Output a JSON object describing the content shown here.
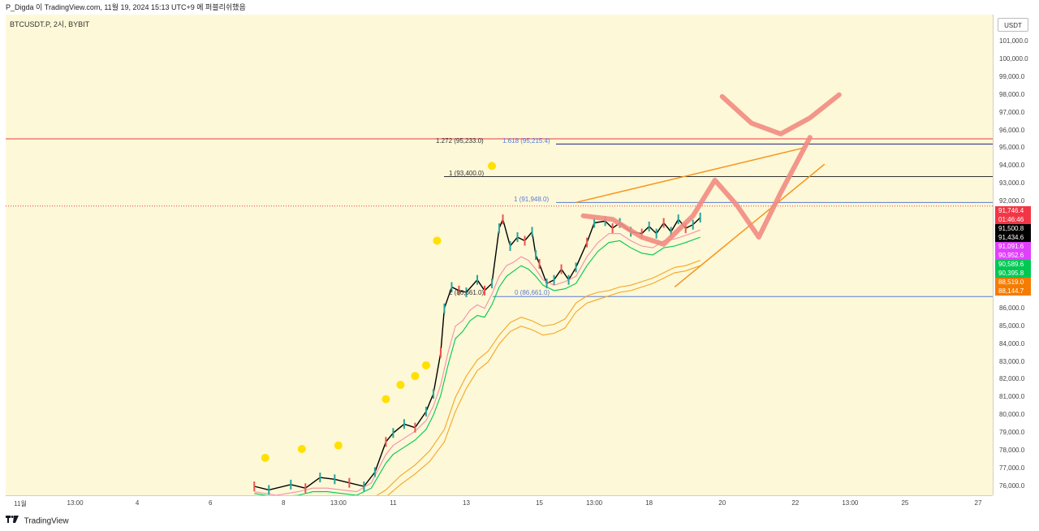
{
  "header": {
    "attribution": "P_Digda 이 TradingView.com, 11월 19, 2024 15:13 UTC+9 에 퍼블리쉬했음"
  },
  "symbol_label": "BTCUSDT.P, 2시, BYBIT",
  "price_scale": {
    "unit": "USDT"
  },
  "footer": {
    "brand": "TradingView"
  },
  "fib_labels": {
    "f1272": "1.272 (95,233.0)",
    "f1618": "1.618 (95,215.4)",
    "f1a": "1 (93,400.0)",
    "f1b": "1 (91,948.0)",
    "f2": "2 (86,661.0)",
    "f0": "0 (86,661.0)"
  },
  "price_badges": [
    {
      "label": "91,746.4",
      "sub": "01:46:46",
      "color": "#f23645"
    },
    {
      "label": "91,500.8",
      "color": "#000000"
    },
    {
      "label": "91,434.6",
      "color": "#000000"
    },
    {
      "label": "91,091.6",
      "color": "#e040fb"
    },
    {
      "label": "90,952.6",
      "color": "#e040fb"
    },
    {
      "label": "90,589.6",
      "color": "#00c853"
    },
    {
      "label": "90,395.8",
      "color": "#00c853"
    },
    {
      "label": "88,519.0",
      "color": "#f57c00"
    },
    {
      "label": "88,144.7",
      "color": "#f57c00"
    }
  ],
  "colors": {
    "background": "#fdf8d7",
    "up": "#26a69a",
    "down": "#ef5350",
    "ma_black": "#000000",
    "ma_pink": "#f48fb1",
    "ma_green": "#00c853",
    "ma_orange": "#f5a623",
    "trend_orange": "#f7931a",
    "path_red": "#f28b82",
    "dot_yellow": "#ffe000"
  },
  "chart_data": {
    "type": "line",
    "title": "BTCUSDT.P, 2시, BYBIT",
    "ylim": [
      75500,
      102500
    ],
    "y_ticks": [
      76000,
      77000,
      78000,
      79000,
      80000,
      81000,
      82000,
      83000,
      84000,
      85000,
      86000,
      87000,
      88000,
      89000,
      90000,
      91000,
      92000,
      93000,
      94000,
      95000,
      96000,
      97000,
      98000,
      99000,
      100000,
      101000
    ],
    "x_ticks": [
      {
        "label": "11월",
        "t": 0
      },
      {
        "label": "13:00",
        "t": 0.75
      },
      {
        "label": "4",
        "t": 1.6
      },
      {
        "label": "6",
        "t": 2.6
      },
      {
        "label": "8",
        "t": 3.6
      },
      {
        "label": "13:00",
        "t": 4.35
      },
      {
        "label": "11",
        "t": 5.1
      },
      {
        "label": "13",
        "t": 6.1
      },
      {
        "label": "15",
        "t": 7.1
      },
      {
        "label": "13:00",
        "t": 7.85
      },
      {
        "label": "18",
        "t": 8.6
      },
      {
        "label": "20",
        "t": 9.6
      },
      {
        "label": "22",
        "t": 10.6
      },
      {
        "label": "13:00",
        "t": 11.35
      },
      {
        "label": "25",
        "t": 12.1
      },
      {
        "label": "27",
        "t": 13.1
      }
    ],
    "series": [
      {
        "points": [
          [
            3.2,
            76000
          ],
          [
            3.4,
            75800
          ],
          [
            3.7,
            76100
          ],
          [
            3.9,
            75900
          ],
          [
            4.1,
            76500
          ],
          [
            4.3,
            76400
          ],
          [
            4.5,
            76200
          ],
          [
            4.7,
            76000
          ],
          [
            4.85,
            76800
          ],
          [
            5.0,
            78500
          ],
          [
            5.1,
            79000
          ],
          [
            5.25,
            79500
          ],
          [
            5.4,
            79300
          ],
          [
            5.55,
            80200
          ],
          [
            5.65,
            81200
          ],
          [
            5.75,
            83500
          ],
          [
            5.8,
            86000
          ],
          [
            5.9,
            87200
          ],
          [
            6.0,
            87000
          ],
          [
            6.1,
            86900
          ],
          [
            6.25,
            87600
          ],
          [
            6.35,
            87000
          ],
          [
            6.45,
            87400
          ],
          [
            6.55,
            90500
          ],
          [
            6.6,
            91000
          ],
          [
            6.7,
            89500
          ],
          [
            6.8,
            90000
          ],
          [
            6.9,
            89800
          ],
          [
            7.0,
            90300
          ],
          [
            7.05,
            89000
          ],
          [
            7.1,
            88500
          ],
          [
            7.2,
            87400
          ],
          [
            7.3,
            87600
          ],
          [
            7.4,
            88200
          ],
          [
            7.5,
            87600
          ],
          [
            7.6,
            88300
          ],
          [
            7.75,
            89700
          ],
          [
            7.85,
            90800
          ],
          [
            8.0,
            90900
          ],
          [
            8.1,
            90500
          ],
          [
            8.2,
            90800
          ],
          [
            8.35,
            90300
          ],
          [
            8.5,
            90200
          ],
          [
            8.6,
            90600
          ],
          [
            8.7,
            90200
          ],
          [
            8.8,
            90800
          ],
          [
            8.9,
            90300
          ],
          [
            9.0,
            91000
          ],
          [
            9.1,
            90500
          ],
          [
            9.2,
            90700
          ],
          [
            9.3,
            91100
          ]
        ]
      },
      {
        "points": [
          [
            3.2,
            75700
          ],
          [
            3.5,
            75500
          ],
          [
            3.8,
            75700
          ],
          [
            4.0,
            75900
          ],
          [
            4.2,
            75900
          ],
          [
            4.4,
            75800
          ],
          [
            4.6,
            75700
          ],
          [
            4.8,
            76200
          ],
          [
            5.0,
            77800
          ],
          [
            5.1,
            78300
          ],
          [
            5.25,
            78700
          ],
          [
            5.4,
            79100
          ],
          [
            5.55,
            79700
          ],
          [
            5.65,
            80500
          ],
          [
            5.75,
            81700
          ],
          [
            5.85,
            83500
          ],
          [
            5.95,
            85000
          ],
          [
            6.05,
            85300
          ],
          [
            6.15,
            85900
          ],
          [
            6.25,
            86200
          ],
          [
            6.35,
            86000
          ],
          [
            6.45,
            86800
          ],
          [
            6.55,
            87800
          ],
          [
            6.65,
            88400
          ],
          [
            6.75,
            88600
          ],
          [
            6.85,
            88900
          ],
          [
            6.95,
            88700
          ],
          [
            7.05,
            88200
          ],
          [
            7.15,
            87600
          ],
          [
            7.3,
            87300
          ],
          [
            7.45,
            87500
          ],
          [
            7.6,
            87800
          ],
          [
            7.75,
            88900
          ],
          [
            7.9,
            89700
          ],
          [
            8.05,
            90200
          ],
          [
            8.2,
            90200
          ],
          [
            8.35,
            89800
          ],
          [
            8.5,
            89500
          ],
          [
            8.65,
            89400
          ],
          [
            8.8,
            89800
          ],
          [
            8.95,
            89900
          ],
          [
            9.1,
            90100
          ],
          [
            9.3,
            90400
          ]
        ]
      },
      {
        "points": [
          [
            3.2,
            75600
          ],
          [
            3.5,
            75400
          ],
          [
            3.8,
            75500
          ],
          [
            4.0,
            75700
          ],
          [
            4.2,
            75700
          ],
          [
            4.4,
            75600
          ],
          [
            4.6,
            75500
          ],
          [
            4.8,
            75900
          ],
          [
            5.0,
            77300
          ],
          [
            5.1,
            77800
          ],
          [
            5.25,
            78200
          ],
          [
            5.4,
            78600
          ],
          [
            5.55,
            79200
          ],
          [
            5.65,
            80000
          ],
          [
            5.75,
            81100
          ],
          [
            5.85,
            82800
          ],
          [
            5.95,
            84300
          ],
          [
            6.05,
            84700
          ],
          [
            6.15,
            85300
          ],
          [
            6.25,
            85600
          ],
          [
            6.35,
            85500
          ],
          [
            6.45,
            86200
          ],
          [
            6.55,
            87200
          ],
          [
            6.65,
            87800
          ],
          [
            6.75,
            88100
          ],
          [
            6.85,
            88400
          ],
          [
            6.95,
            88200
          ],
          [
            7.05,
            87800
          ],
          [
            7.15,
            87300
          ],
          [
            7.3,
            87000
          ],
          [
            7.45,
            87100
          ],
          [
            7.6,
            87400
          ],
          [
            7.75,
            88400
          ],
          [
            7.9,
            89200
          ],
          [
            8.05,
            89700
          ],
          [
            8.2,
            89800
          ],
          [
            8.35,
            89400
          ],
          [
            8.5,
            89100
          ],
          [
            8.65,
            89000
          ],
          [
            8.8,
            89400
          ],
          [
            8.95,
            89500
          ],
          [
            9.1,
            89700
          ],
          [
            9.3,
            90000
          ]
        ]
      },
      {
        "points": [
          [
            3.8,
            75000
          ],
          [
            4.3,
            75200
          ],
          [
            4.8,
            75300
          ],
          [
            5.0,
            75800
          ],
          [
            5.2,
            76600
          ],
          [
            5.4,
            77200
          ],
          [
            5.6,
            78000
          ],
          [
            5.8,
            79200
          ],
          [
            5.95,
            81000
          ],
          [
            6.1,
            82200
          ],
          [
            6.25,
            83100
          ],
          [
            6.4,
            83600
          ],
          [
            6.55,
            84500
          ],
          [
            6.7,
            85200
          ],
          [
            6.85,
            85500
          ],
          [
            7.0,
            85300
          ],
          [
            7.15,
            85000
          ],
          [
            7.3,
            85100
          ],
          [
            7.45,
            85400
          ],
          [
            7.6,
            86300
          ],
          [
            7.75,
            86700
          ],
          [
            7.9,
            86900
          ],
          [
            8.05,
            87000
          ],
          [
            8.2,
            87200
          ],
          [
            8.35,
            87300
          ],
          [
            8.5,
            87500
          ],
          [
            8.65,
            87700
          ],
          [
            8.8,
            88000
          ],
          [
            8.95,
            88300
          ],
          [
            9.1,
            88400
          ],
          [
            9.3,
            88700
          ]
        ]
      },
      {
        "points": [
          [
            3.8,
            74700
          ],
          [
            4.3,
            74900
          ],
          [
            4.8,
            75000
          ],
          [
            5.0,
            75400
          ],
          [
            5.2,
            76100
          ],
          [
            5.4,
            76700
          ],
          [
            5.6,
            77400
          ],
          [
            5.8,
            78500
          ],
          [
            5.95,
            80200
          ],
          [
            6.1,
            81500
          ],
          [
            6.25,
            82500
          ],
          [
            6.4,
            83000
          ],
          [
            6.55,
            84000
          ],
          [
            6.7,
            84700
          ],
          [
            6.85,
            85000
          ],
          [
            7.0,
            84800
          ],
          [
            7.15,
            84500
          ],
          [
            7.3,
            84600
          ],
          [
            7.45,
            84900
          ],
          [
            7.6,
            85800
          ],
          [
            7.75,
            86300
          ],
          [
            7.9,
            86500
          ],
          [
            8.05,
            86700
          ],
          [
            8.2,
            86900
          ],
          [
            8.35,
            87000
          ],
          [
            8.5,
            87200
          ],
          [
            8.65,
            87400
          ],
          [
            8.8,
            87700
          ],
          [
            8.95,
            88000
          ],
          [
            9.1,
            88100
          ],
          [
            9.3,
            88400
          ]
        ]
      }
    ],
    "annotations": [
      {
        "type": "hline",
        "y": 95520,
        "color": "#f23645"
      },
      {
        "type": "hline",
        "y": 93400,
        "color": "#333333"
      },
      {
        "type": "hline",
        "y": 91948,
        "color": "#5b7bd5"
      },
      {
        "type": "hline",
        "y": 86661,
        "color": "#5b7bd5"
      },
      {
        "type": "hline",
        "y": 95233,
        "color": "#1a237e"
      },
      {
        "type": "trend",
        "from": [
          7.6,
          91950
        ],
        "to": [
          10.7,
          95000
        ]
      },
      {
        "type": "trend",
        "from": [
          8.95,
          87200
        ],
        "to": [
          11.0,
          94100
        ]
      },
      {
        "type": "path",
        "points": [
          [
            9.6,
            97900
          ],
          [
            10.0,
            96400
          ],
          [
            10.4,
            95800
          ],
          [
            10.8,
            96700
          ],
          [
            11.2,
            98000
          ]
        ]
      },
      {
        "type": "path",
        "points": [
          [
            7.7,
            91200
          ],
          [
            8.1,
            91000
          ],
          [
            8.5,
            90000
          ],
          [
            8.8,
            89600
          ],
          [
            9.2,
            91200
          ],
          [
            9.5,
            93200
          ],
          [
            9.8,
            91800
          ],
          [
            10.1,
            90000
          ],
          [
            10.4,
            92500
          ],
          [
            10.8,
            95600
          ]
        ]
      }
    ],
    "markers": [
      [
        3.35,
        77600
      ],
      [
        3.85,
        78100
      ],
      [
        4.35,
        78300
      ],
      [
        5.0,
        80900
      ],
      [
        5.2,
        81700
      ],
      [
        5.4,
        82200
      ],
      [
        5.55,
        82800
      ],
      [
        5.7,
        89800
      ],
      [
        6.45,
        94000
      ]
    ]
  }
}
